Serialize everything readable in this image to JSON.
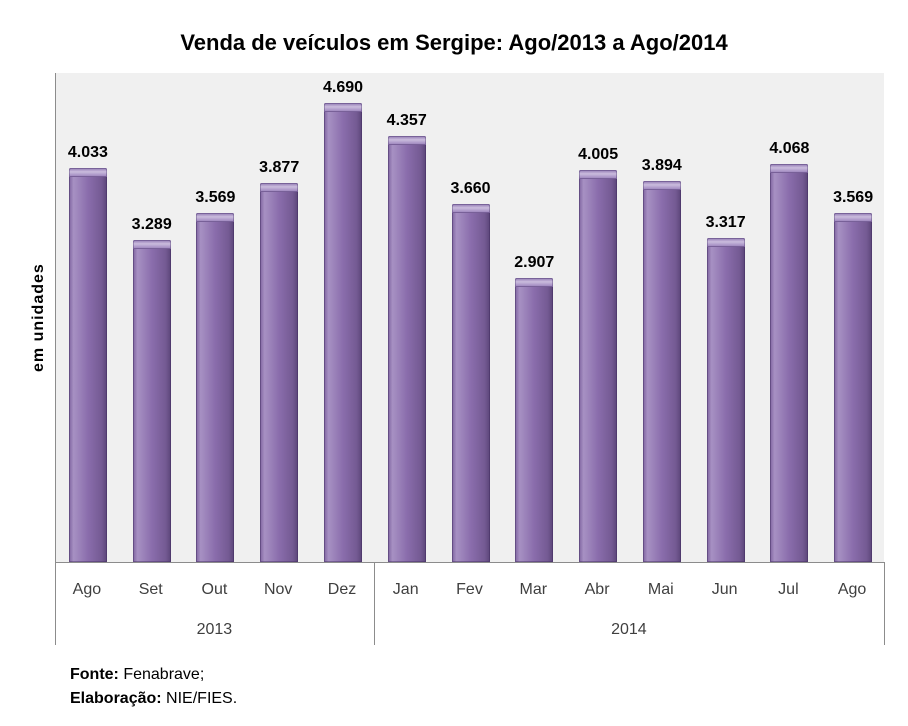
{
  "title": "Venda de veículos em Sergipe: Ago/2013 a Ago/2014",
  "chart_data": {
    "type": "bar",
    "title": "Venda de veículos em Sergipe: Ago/2013 a Ago/2014",
    "xlabel": "",
    "ylabel": "em unidades",
    "ylim": [
      0,
      5000
    ],
    "grid": false,
    "legend": false,
    "bar_color": "#8064A2",
    "plot_bg": "#F0F0F0",
    "axis_color": "#8C8C8C",
    "categories": [
      "Ago",
      "Set",
      "Out",
      "Nov",
      "Dez",
      "Jan",
      "Fev",
      "Mar",
      "Abr",
      "Mai",
      "Jun",
      "Jul",
      "Ago"
    ],
    "values": [
      4033,
      3289,
      3569,
      3877,
      4690,
      4357,
      3660,
      2907,
      4005,
      3894,
      3317,
      4068,
      3569
    ],
    "value_labels": [
      "4.033",
      "3.289",
      "3.569",
      "3.877",
      "4.690",
      "4.357",
      "3.660",
      "2.907",
      "4.005",
      "3.894",
      "3.317",
      "4.068",
      "3.569"
    ],
    "groups": [
      {
        "label": "2013",
        "count": 5
      },
      {
        "label": "2014",
        "count": 8
      }
    ]
  },
  "footer": {
    "source_label": "Fonte:",
    "source_value": "Fenabrave;",
    "elaboration_label": "Elaboração:",
    "elaboration_value": "NIE/FIES."
  }
}
